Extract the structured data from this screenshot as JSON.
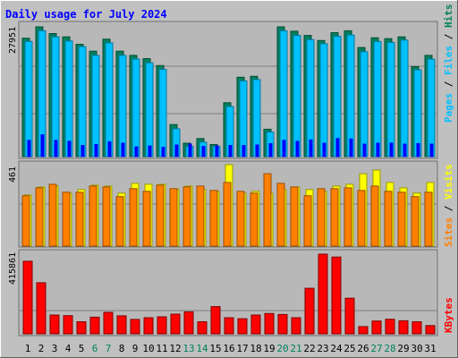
{
  "title": "Daily usage for July 2024",
  "colors": {
    "background": "#c0c0c0",
    "plot_bg": "#b8b8b8",
    "title": "#0000ff",
    "hits": "#00805c",
    "hits_dark": "#004d38",
    "files": "#00c0ff",
    "files_dark": "#0077a0",
    "pages": "#0000ff",
    "visits": "#ffff00",
    "visits_dark": "#9a9a00",
    "sites": "#ff8000",
    "sites_dark": "#9a4d00",
    "kbytes": "#ff0000",
    "kbytes_dark": "#800000",
    "weekend_label": "#00805c",
    "weekday_label": "#000000",
    "grid": "#808080"
  },
  "chart_data": [
    {
      "type": "bar",
      "panel": "hits",
      "y_max_label": "27951",
      "ylim": [
        0,
        27951
      ],
      "right_label": [
        "Pages",
        "Files",
        "Hits"
      ],
      "series": [
        {
          "name": "Hits",
          "values": [
            25500,
            27951,
            26500,
            25800,
            24200,
            22700,
            25300,
            22700,
            21800,
            21100,
            19600,
            6900,
            2900,
            3900,
            2600,
            11600,
            17100,
            17300,
            5900,
            27951,
            27000,
            26100,
            25000,
            26700,
            27100,
            23500,
            25600,
            25400,
            25800,
            19400,
            21800
          ]
        },
        {
          "name": "Files",
          "values": [
            24800,
            27100,
            25800,
            24900,
            23700,
            21800,
            24500,
            21800,
            21000,
            20200,
            18800,
            6000,
            2200,
            3100,
            2200,
            10800,
            16300,
            16600,
            5300,
            27100,
            26100,
            25200,
            24300,
            25900,
            26200,
            22600,
            24800,
            24600,
            25100,
            18700,
            21000
          ]
        },
        {
          "name": "Pages",
          "values": [
            3500,
            4700,
            3500,
            3300,
            2400,
            2600,
            3200,
            2900,
            2100,
            2300,
            2000,
            2500,
            2700,
            2200,
            2300,
            2400,
            2400,
            2500,
            2800,
            3500,
            3300,
            3600,
            2900,
            3900,
            3800,
            2700,
            2900,
            2900,
            2700,
            2800,
            2700
          ]
        }
      ]
    },
    {
      "type": "bar",
      "panel": "visits",
      "y_max_label": "461",
      "ylim": [
        0,
        461
      ],
      "right_label": [
        "Sites",
        "Visits"
      ],
      "series": [
        {
          "name": "Visits",
          "values": [
            290,
            335,
            340,
            300,
            320,
            345,
            340,
            300,
            355,
            350,
            350,
            320,
            340,
            320,
            310,
            461,
            300,
            310,
            300,
            320,
            335,
            320,
            310,
            340,
            350,
            410,
            430,
            360,
            330,
            300,
            360
          ]
        },
        {
          "name": "Sites",
          "values": [
            285,
            330,
            350,
            305,
            305,
            340,
            335,
            280,
            325,
            310,
            345,
            325,
            335,
            340,
            315,
            360,
            310,
            300,
            410,
            355,
            335,
            285,
            325,
            325,
            330,
            315,
            340,
            310,
            305,
            280,
            305
          ]
        }
      ]
    },
    {
      "type": "bar",
      "panel": "kbytes",
      "y_max_label": "415861",
      "ylim": [
        0,
        415861
      ],
      "right_label": [
        "KBytes"
      ],
      "series": [
        {
          "name": "KBytes",
          "values": [
            379000,
            267000,
            98000,
            95000,
            63000,
            87000,
            112000,
            94000,
            75000,
            84000,
            89000,
            103000,
            115000,
            63000,
            142000,
            84000,
            79000,
            98000,
            106000,
            101000,
            84000,
            238000,
            415861,
            401000,
            186000,
            38000,
            67000,
            76000,
            68000,
            63000,
            43000
          ]
        }
      ]
    }
  ],
  "x_labels": [
    "1",
    "2",
    "3",
    "4",
    "5",
    "6",
    "7",
    "8",
    "9",
    "10",
    "11",
    "12",
    "13",
    "14",
    "15",
    "16",
    "17",
    "18",
    "19",
    "20",
    "21",
    "22",
    "23",
    "24",
    "25",
    "26",
    "27",
    "28",
    "29",
    "30",
    "31"
  ],
  "weekend_days": [
    6,
    7,
    13,
    14,
    20,
    21,
    27,
    28
  ]
}
